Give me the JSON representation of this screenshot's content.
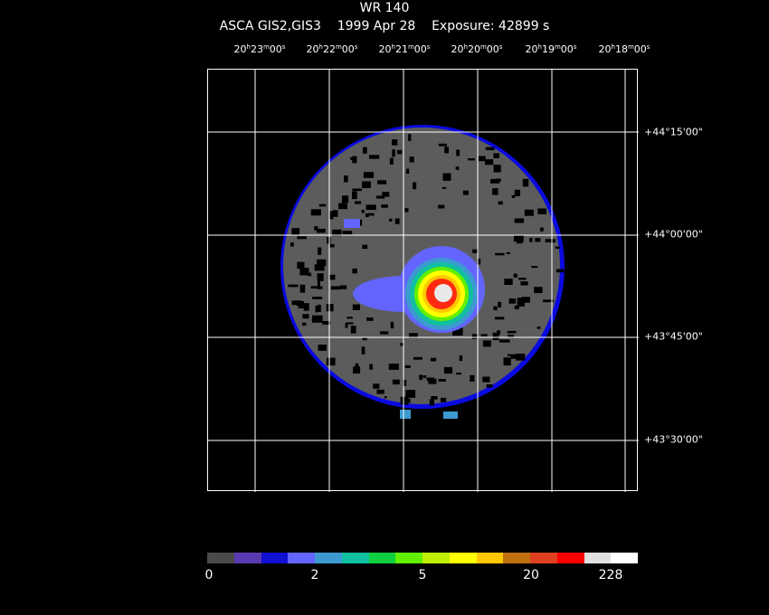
{
  "header": {
    "title": "WR 140",
    "subtitle": "ASCA GIS2,GIS3    1999 Apr 28    Exposure: 42899 s"
  },
  "ra_ticks": [
    {
      "h": "20",
      "m": "23",
      "s": "00"
    },
    {
      "h": "20",
      "m": "22",
      "s": "00"
    },
    {
      "h": "20",
      "m": "21",
      "s": "00"
    },
    {
      "h": "20",
      "m": "20",
      "s": "00"
    },
    {
      "h": "20",
      "m": "19",
      "s": "00"
    },
    {
      "h": "20",
      "m": "18",
      "s": "00"
    }
  ],
  "dec_ticks": [
    "+44°15'00\"",
    "+44°00'00\"",
    "+43°45'00\"",
    "+43°30'00\""
  ],
  "colorbar": {
    "colors": [
      "#4a4a4a",
      "#5a3ab0",
      "#1010d0",
      "#6464ff",
      "#3c9ad0",
      "#10c0a0",
      "#10d040",
      "#60f000",
      "#c0f000",
      "#ffff00",
      "#ffc800",
      "#c07010",
      "#e04020",
      "#ff0000",
      "#e0e0e0",
      "#ffffff"
    ],
    "labels": [
      "0",
      "2",
      "5",
      "20",
      "228"
    ]
  }
}
